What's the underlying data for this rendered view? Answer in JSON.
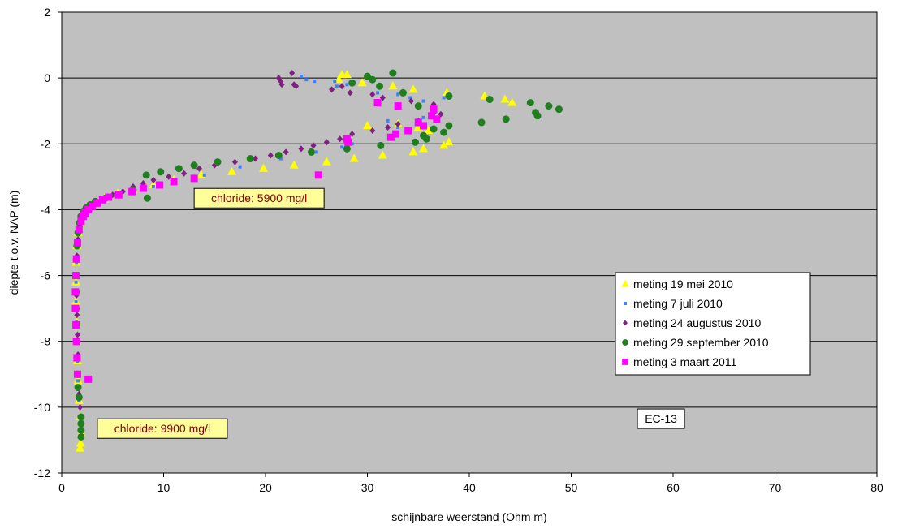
{
  "chart_data": {
    "type": "scatter",
    "xlabel": "schijnbare weerstand (Ohm m)",
    "ylabel": "diepte t.o.v. NAP (m)",
    "xlim": [
      0,
      80
    ],
    "ylim": [
      -12,
      2
    ],
    "x_ticks": [
      0,
      10,
      20,
      30,
      40,
      50,
      60,
      70,
      80
    ],
    "y_ticks": [
      2,
      0,
      -2,
      -4,
      -6,
      -8,
      -10,
      -12
    ],
    "grid": "horizontal",
    "legend_position": "right",
    "annotations": [
      {
        "text": "chloride: 5900 mg/l",
        "x": 13,
        "y": -3.65
      },
      {
        "text": "chloride: 9900 mg/l",
        "x": 3.5,
        "y": -10.65
      },
      {
        "text": "EC-13",
        "x": 56.5,
        "y": -10.35
      }
    ],
    "series": [
      {
        "name": "meting 19 mei 2010",
        "marker": "triangle",
        "color": "#ffff00",
        "points": [
          [
            27.2,
            -0.05
          ],
          [
            27.5,
            0.1
          ],
          [
            28,
            0.1
          ],
          [
            29.5,
            -0.15
          ],
          [
            32.5,
            -0.25
          ],
          [
            34.5,
            -0.35
          ],
          [
            37.8,
            -0.45
          ],
          [
            41.5,
            -0.55
          ],
          [
            43.5,
            -0.65
          ],
          [
            44.2,
            -0.75
          ],
          [
            30,
            -1.45
          ],
          [
            33,
            -1.4
          ],
          [
            35,
            -1.5
          ],
          [
            36,
            -1.6
          ],
          [
            37.5,
            -2.05
          ],
          [
            38,
            -1.95
          ],
          [
            34.5,
            -2.25
          ],
          [
            35.5,
            -2.15
          ],
          [
            31.5,
            -2.35
          ],
          [
            28.7,
            -2.45
          ],
          [
            26,
            -2.55
          ],
          [
            22.8,
            -2.65
          ],
          [
            19.8,
            -2.75
          ],
          [
            16.7,
            -2.85
          ],
          [
            13.7,
            -2.95
          ],
          [
            11,
            -3.1
          ],
          [
            9,
            -3.25
          ],
          [
            7,
            -3.4
          ],
          [
            5.5,
            -3.5
          ],
          [
            4.2,
            -3.65
          ],
          [
            3.2,
            -3.8
          ],
          [
            2.5,
            -3.95
          ],
          [
            2.1,
            -4.15
          ],
          [
            1.8,
            -4.4
          ],
          [
            1.6,
            -4.7
          ],
          [
            1.5,
            -5.1
          ],
          [
            1.4,
            -5.6
          ],
          [
            1.4,
            -6.2
          ],
          [
            1.4,
            -6.8
          ],
          [
            1.45,
            -7.4
          ],
          [
            1.5,
            -8
          ],
          [
            1.55,
            -8.6
          ],
          [
            1.6,
            -9.2
          ],
          [
            1.7,
            -9.8
          ],
          [
            1.8,
            -10.3
          ],
          [
            1.9,
            -10.8
          ],
          [
            1.85,
            -11.1
          ],
          [
            1.8,
            -11.25
          ]
        ]
      },
      {
        "name": "meting 7 juli 2010",
        "marker": "square-small",
        "color": "#3f7fff",
        "points": [
          [
            23.5,
            0.05
          ],
          [
            24,
            -0.05
          ],
          [
            24.8,
            -0.1
          ],
          [
            26.8,
            -0.1
          ],
          [
            27,
            -0.25
          ],
          [
            28,
            -0.2
          ],
          [
            31,
            -0.45
          ],
          [
            33,
            -0.5
          ],
          [
            34.2,
            -0.6
          ],
          [
            35.5,
            -0.7
          ],
          [
            36.5,
            -0.8
          ],
          [
            37.5,
            -0.6
          ],
          [
            32,
            -1.3
          ],
          [
            33,
            -1.5
          ],
          [
            34,
            -1.6
          ],
          [
            34.8,
            -1.4
          ],
          [
            35.5,
            -1.2
          ],
          [
            27.5,
            -2.1
          ],
          [
            28.5,
            -2.0
          ],
          [
            26,
            -1.95
          ],
          [
            25,
            -2.25
          ],
          [
            21.5,
            -2.45
          ],
          [
            17.5,
            -2.7
          ],
          [
            14,
            -2.95
          ],
          [
            11,
            -3.15
          ],
          [
            9,
            -3.3
          ],
          [
            7,
            -3.45
          ],
          [
            5.5,
            -3.55
          ],
          [
            4.5,
            -3.65
          ],
          [
            3.5,
            -3.8
          ],
          [
            2.6,
            -3.95
          ],
          [
            2.2,
            -4.15
          ],
          [
            1.9,
            -4.4
          ],
          [
            1.7,
            -4.7
          ],
          [
            1.55,
            -5.1
          ],
          [
            1.45,
            -5.6
          ],
          [
            1.4,
            -6.2
          ],
          [
            1.4,
            -6.8
          ],
          [
            1.45,
            -7.4
          ],
          [
            1.5,
            -8
          ],
          [
            1.55,
            -8.6
          ],
          [
            1.6,
            -9.2
          ],
          [
            1.7,
            -9.8
          ],
          [
            1.85,
            -10.3
          ],
          [
            1.9,
            -10.8
          ]
        ]
      },
      {
        "name": "meting 24 augustus 2010",
        "marker": "diamond",
        "color": "#7f1f7f",
        "points": [
          [
            21.3,
            0.0
          ],
          [
            21.5,
            -0.1
          ],
          [
            21.6,
            -0.2
          ],
          [
            22.6,
            0.15
          ],
          [
            22.8,
            -0.2
          ],
          [
            23,
            -0.25
          ],
          [
            26.5,
            -0.35
          ],
          [
            27.5,
            -0.25
          ],
          [
            28.3,
            -0.45
          ],
          [
            30.5,
            -0.5
          ],
          [
            31.5,
            -0.6
          ],
          [
            34.3,
            -0.7
          ],
          [
            36.5,
            -0.8
          ],
          [
            37.2,
            -1.1
          ],
          [
            35,
            -1.3
          ],
          [
            33,
            -1.4
          ],
          [
            32,
            -1.5
          ],
          [
            30.5,
            -1.6
          ],
          [
            28.5,
            -1.7
          ],
          [
            27.3,
            -1.85
          ],
          [
            26,
            -1.95
          ],
          [
            24.7,
            -2.05
          ],
          [
            23.5,
            -2.15
          ],
          [
            22,
            -2.25
          ],
          [
            20.5,
            -2.35
          ],
          [
            19,
            -2.45
          ],
          [
            17,
            -2.55
          ],
          [
            15,
            -2.65
          ],
          [
            13.5,
            -2.75
          ],
          [
            12,
            -2.9
          ],
          [
            10.5,
            -3.0
          ],
          [
            9,
            -3.1
          ],
          [
            8,
            -3.2
          ],
          [
            7,
            -3.3
          ],
          [
            6,
            -3.45
          ],
          [
            5,
            -3.55
          ],
          [
            4,
            -3.7
          ],
          [
            3,
            -3.85
          ],
          [
            2.5,
            -4.0
          ],
          [
            2.1,
            -4.2
          ],
          [
            1.8,
            -4.5
          ],
          [
            1.6,
            -4.9
          ],
          [
            1.5,
            -5.4
          ],
          [
            1.45,
            -6.0
          ],
          [
            1.45,
            -6.6
          ],
          [
            1.5,
            -7.2
          ],
          [
            1.55,
            -7.8
          ],
          [
            1.6,
            -8.4
          ],
          [
            1.65,
            -9.0
          ],
          [
            1.7,
            -9.6
          ],
          [
            1.8,
            -10.0
          ],
          [
            1.85,
            -10.3
          ]
        ]
      },
      {
        "name": "meting 29 september 2010",
        "marker": "circle",
        "color": "#1f7f1f",
        "points": [
          [
            28.5,
            -0.15
          ],
          [
            30,
            0.05
          ],
          [
            30.5,
            -0.05
          ],
          [
            31.2,
            -0.25
          ],
          [
            32.5,
            0.15
          ],
          [
            33.5,
            -0.45
          ],
          [
            35,
            -0.85
          ],
          [
            36.5,
            -1.0
          ],
          [
            38,
            -0.55
          ],
          [
            42,
            -0.65
          ],
          [
            46,
            -0.75
          ],
          [
            47.8,
            -0.85
          ],
          [
            46.5,
            -1.05
          ],
          [
            46.7,
            -1.15
          ],
          [
            48.8,
            -0.95
          ],
          [
            41.2,
            -1.35
          ],
          [
            43.6,
            -1.25
          ],
          [
            36.5,
            -1.55
          ],
          [
            37.5,
            -1.65
          ],
          [
            38,
            -1.45
          ],
          [
            35.5,
            -1.75
          ],
          [
            35.8,
            -1.85
          ],
          [
            34.7,
            -1.95
          ],
          [
            31.3,
            -2.05
          ],
          [
            28,
            -2.15
          ],
          [
            24.5,
            -2.25
          ],
          [
            21.3,
            -2.35
          ],
          [
            18.5,
            -2.45
          ],
          [
            15.3,
            -2.55
          ],
          [
            13,
            -2.65
          ],
          [
            11.5,
            -2.75
          ],
          [
            9.7,
            -2.85
          ],
          [
            8.3,
            -2.95
          ],
          [
            8.4,
            -3.65
          ],
          [
            7,
            -3.4
          ],
          [
            5.5,
            -3.55
          ],
          [
            4.3,
            -3.65
          ],
          [
            3.3,
            -3.75
          ],
          [
            2.8,
            -3.85
          ],
          [
            2.4,
            -3.95
          ],
          [
            2.1,
            -4.05
          ],
          [
            1.9,
            -4.2
          ],
          [
            1.75,
            -4.4
          ],
          [
            1.6,
            -4.7
          ],
          [
            1.5,
            -5.1
          ],
          [
            1.45,
            -5.5
          ],
          [
            1.4,
            -6.0
          ],
          [
            1.4,
            -6.5
          ],
          [
            1.4,
            -7.0
          ],
          [
            1.45,
            -7.5
          ],
          [
            1.5,
            -8.0
          ],
          [
            1.5,
            -8.5
          ],
          [
            1.55,
            -9.0
          ],
          [
            1.6,
            -9.4
          ],
          [
            1.7,
            -9.7
          ],
          [
            1.9,
            -10.3
          ],
          [
            1.9,
            -10.5
          ],
          [
            1.9,
            -10.7
          ],
          [
            1.9,
            -10.9
          ]
        ]
      },
      {
        "name": "meting 3 maart 2011",
        "marker": "square",
        "color": "#ff00ff",
        "points": [
          [
            31,
            -0.75
          ],
          [
            33,
            -0.85
          ],
          [
            36.5,
            -0.95
          ],
          [
            36.3,
            -1.15
          ],
          [
            36.8,
            -1.25
          ],
          [
            35,
            -1.35
          ],
          [
            35.5,
            -1.45
          ],
          [
            34,
            -1.6
          ],
          [
            32.8,
            -1.7
          ],
          [
            32.3,
            -1.8
          ],
          [
            28,
            -1.85
          ],
          [
            28.1,
            -1.95
          ],
          [
            25.2,
            -2.95
          ],
          [
            13,
            -3.05
          ],
          [
            11,
            -3.15
          ],
          [
            9.6,
            -3.25
          ],
          [
            8,
            -3.35
          ],
          [
            6.9,
            -3.45
          ],
          [
            5.6,
            -3.55
          ],
          [
            4.6,
            -3.62
          ],
          [
            4,
            -3.7
          ],
          [
            3.5,
            -3.8
          ],
          [
            3,
            -3.9
          ],
          [
            2.6,
            -4.0
          ],
          [
            2.3,
            -4.1
          ],
          [
            2.1,
            -4.2
          ],
          [
            1.9,
            -4.35
          ],
          [
            1.7,
            -4.6
          ],
          [
            1.55,
            -5.0
          ],
          [
            1.45,
            -5.5
          ],
          [
            1.4,
            -6.0
          ],
          [
            1.35,
            -6.5
          ],
          [
            1.35,
            -7.0
          ],
          [
            1.4,
            -7.5
          ],
          [
            1.45,
            -8.0
          ],
          [
            1.5,
            -8.5
          ],
          [
            1.55,
            -9.0
          ],
          [
            2.6,
            -9.15
          ]
        ]
      }
    ]
  }
}
